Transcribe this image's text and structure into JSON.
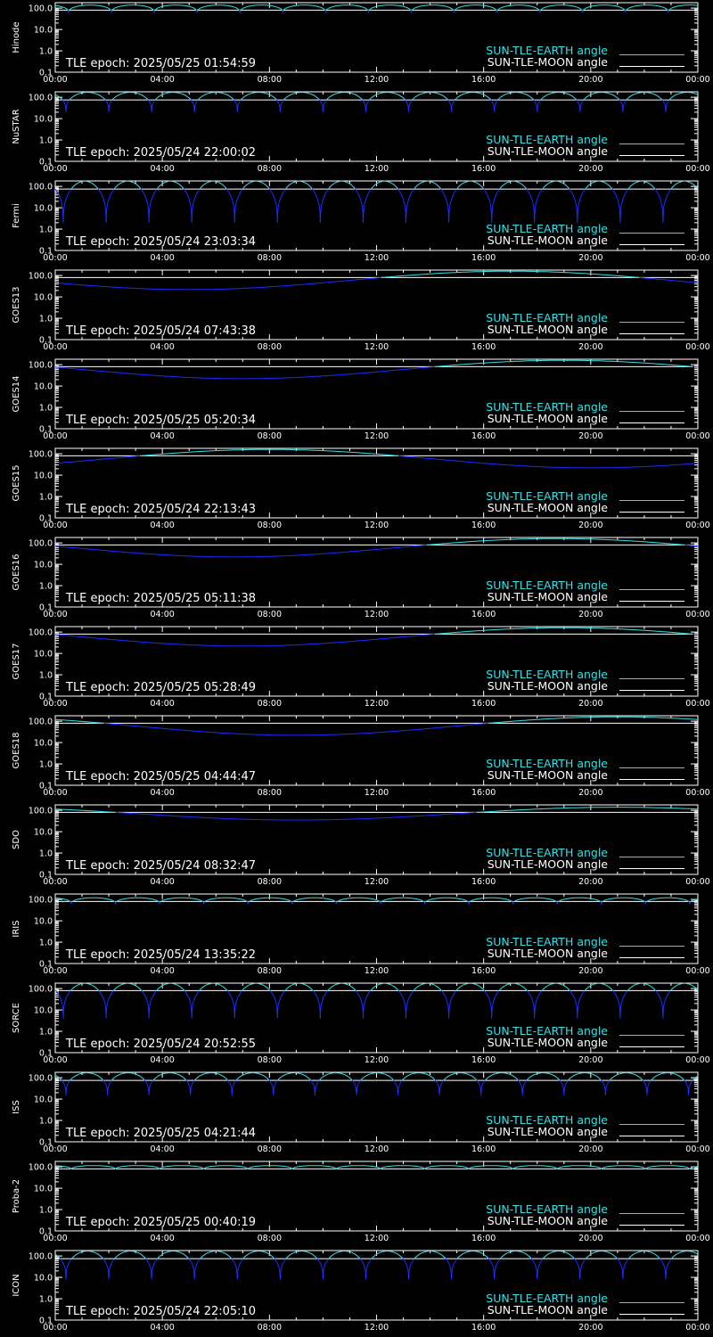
{
  "colors": {
    "background": "#000000",
    "axis": "#ffffff",
    "earth_angle": "#35e0e6",
    "moon_angle": "#ffffff",
    "dip": "#1a2cff"
  },
  "legend": {
    "earth_label": "SUN-TLE-EARTH angle",
    "moon_label": "SUN-TLE-MOON angle"
  },
  "x_axis": {
    "ticks": [
      "00:00",
      "04:00",
      "08:00",
      "12:00",
      "16:00",
      "20:00",
      "00:00"
    ],
    "range_hours": [
      0,
      24
    ]
  },
  "y_axis": {
    "scale": "log",
    "range": [
      0.1,
      180
    ],
    "ticks": [
      "100.0",
      "10.0",
      "1.0",
      "0.1"
    ]
  },
  "chart_data": [
    {
      "type": "line",
      "ylabel": "Hinode",
      "epoch": "TLE epoch: 2025/05/25 01:54:59",
      "series": [
        {
          "name": "SUN-TLE-EARTH angle",
          "model": {
            "kind": "orbit",
            "period_h": 1.6,
            "phase_h": 0.5,
            "peak": 140,
            "min": 60
          }
        },
        {
          "name": "SUN-TLE-MOON angle",
          "model": {
            "kind": "flat",
            "value": 80
          }
        }
      ]
    },
    {
      "type": "line",
      "ylabel": "NuSTAR",
      "epoch": "TLE epoch: 2025/05/24 22:00:02",
      "series": [
        {
          "name": "SUN-TLE-EARTH angle",
          "model": {
            "kind": "orbit",
            "period_h": 1.6,
            "phase_h": 0.4,
            "peak": 170,
            "min": 20
          }
        },
        {
          "name": "SUN-TLE-MOON angle",
          "model": {
            "kind": "flat",
            "value": 75
          }
        }
      ]
    },
    {
      "type": "line",
      "ylabel": "Fermi",
      "epoch": "TLE epoch: 2025/05/24 23:03:34",
      "series": [
        {
          "name": "SUN-TLE-EARTH angle",
          "model": {
            "kind": "orbit",
            "period_h": 1.6,
            "phase_h": 0.3,
            "peak": 175,
            "min": 2
          }
        },
        {
          "name": "SUN-TLE-MOON angle",
          "model": {
            "kind": "flat",
            "value": 75
          }
        }
      ]
    },
    {
      "type": "line",
      "ylabel": "GOES13",
      "epoch": "TLE epoch: 2025/05/24 07:43:38",
      "series": [
        {
          "name": "SUN-TLE-EARTH angle",
          "model": {
            "kind": "geo",
            "center_h": 5.0,
            "min": 22,
            "max": 160
          }
        },
        {
          "name": "SUN-TLE-MOON angle",
          "model": {
            "kind": "flat",
            "value": 80
          }
        }
      ]
    },
    {
      "type": "line",
      "ylabel": "GOES14",
      "epoch": "TLE epoch: 2025/05/25 05:20:34",
      "series": [
        {
          "name": "SUN-TLE-EARTH angle",
          "model": {
            "kind": "geo",
            "center_h": 7.0,
            "min": 22,
            "max": 160
          }
        },
        {
          "name": "SUN-TLE-MOON angle",
          "model": {
            "kind": "flat",
            "value": 80
          }
        }
      ]
    },
    {
      "type": "line",
      "ylabel": "GOES15",
      "epoch": "TLE epoch: 2025/05/24 22:13:43",
      "series": [
        {
          "name": "SUN-TLE-EARTH angle",
          "model": {
            "kind": "geo",
            "center_h": 20.0,
            "min": 22,
            "max": 160
          }
        },
        {
          "name": "SUN-TLE-MOON angle",
          "model": {
            "kind": "flat",
            "value": 80
          }
        }
      ]
    },
    {
      "type": "line",
      "ylabel": "GOES16",
      "epoch": "TLE epoch: 2025/05/25 05:11:38",
      "series": [
        {
          "name": "SUN-TLE-EARTH angle",
          "model": {
            "kind": "geo",
            "center_h": 6.7,
            "min": 22,
            "max": 160
          }
        },
        {
          "name": "SUN-TLE-MOON angle",
          "model": {
            "kind": "flat",
            "value": 80
          }
        }
      ]
    },
    {
      "type": "line",
      "ylabel": "GOES17",
      "epoch": "TLE epoch: 2025/05/25 05:28:49",
      "series": [
        {
          "name": "SUN-TLE-EARTH angle",
          "model": {
            "kind": "geo",
            "center_h": 7.0,
            "min": 22,
            "max": 160
          }
        },
        {
          "name": "SUN-TLE-MOON angle",
          "model": {
            "kind": "flat",
            "value": 80
          }
        }
      ]
    },
    {
      "type": "line",
      "ylabel": "GOES18",
      "epoch": "TLE epoch: 2025/05/25 04:44:47",
      "series": [
        {
          "name": "SUN-TLE-EARTH angle",
          "model": {
            "kind": "geo",
            "center_h": 9.0,
            "min": 22,
            "max": 160
          }
        },
        {
          "name": "SUN-TLE-MOON angle",
          "model": {
            "kind": "flat",
            "value": 80
          }
        }
      ]
    },
    {
      "type": "line",
      "ylabel": "SDO",
      "epoch": "TLE epoch: 2025/05/24 08:32:47",
      "series": [
        {
          "name": "SUN-TLE-EARTH angle",
          "model": {
            "kind": "geo",
            "center_h": 9.0,
            "min": 35,
            "max": 140
          }
        },
        {
          "name": "SUN-TLE-MOON angle",
          "model": {
            "kind": "flat",
            "value": 80
          }
        }
      ]
    },
    {
      "type": "line",
      "ylabel": "IRIS",
      "epoch": "TLE epoch: 2025/05/24 13:35:22",
      "series": [
        {
          "name": "SUN-TLE-EARTH angle",
          "model": {
            "kind": "orbit",
            "period_h": 1.65,
            "phase_h": 0.6,
            "peak": 120,
            "min": 60
          }
        },
        {
          "name": "SUN-TLE-MOON angle",
          "model": {
            "kind": "flat",
            "value": 80
          }
        }
      ]
    },
    {
      "type": "line",
      "ylabel": "SORCE",
      "epoch": "TLE epoch: 2025/05/24 20:52:55",
      "series": [
        {
          "name": "SUN-TLE-EARTH angle",
          "model": {
            "kind": "orbit",
            "period_h": 1.6,
            "phase_h": 0.3,
            "peak": 175,
            "min": 4
          }
        },
        {
          "name": "SUN-TLE-MOON angle",
          "model": {
            "kind": "flat",
            "value": 80
          }
        }
      ]
    },
    {
      "type": "line",
      "ylabel": "ISS",
      "epoch": "TLE epoch: 2025/05/25 04:21:44",
      "series": [
        {
          "name": "SUN-TLE-EARTH angle",
          "model": {
            "kind": "orbit",
            "period_h": 1.55,
            "phase_h": 0.4,
            "peak": 170,
            "min": 15
          }
        },
        {
          "name": "SUN-TLE-MOON angle",
          "model": {
            "kind": "flat",
            "value": 75
          }
        }
      ]
    },
    {
      "type": "line",
      "ylabel": "Proba-2",
      "epoch": "TLE epoch: 2025/05/25 00:40:19",
      "series": [
        {
          "name": "SUN-TLE-EARTH angle",
          "model": {
            "kind": "orbit",
            "period_h": 1.65,
            "phase_h": 0.6,
            "peak": 115,
            "min": 75
          }
        },
        {
          "name": "SUN-TLE-MOON angle",
          "model": {
            "kind": "flat",
            "value": 80
          }
        }
      ]
    },
    {
      "type": "line",
      "ylabel": "ICON",
      "epoch": "TLE epoch: 2025/05/24 22:05:10",
      "series": [
        {
          "name": "SUN-TLE-EARTH angle",
          "model": {
            "kind": "orbit",
            "period_h": 1.6,
            "phase_h": 0.4,
            "peak": 170,
            "min": 8
          }
        },
        {
          "name": "SUN-TLE-MOON angle",
          "model": {
            "kind": "flat",
            "value": 75
          }
        }
      ]
    }
  ]
}
